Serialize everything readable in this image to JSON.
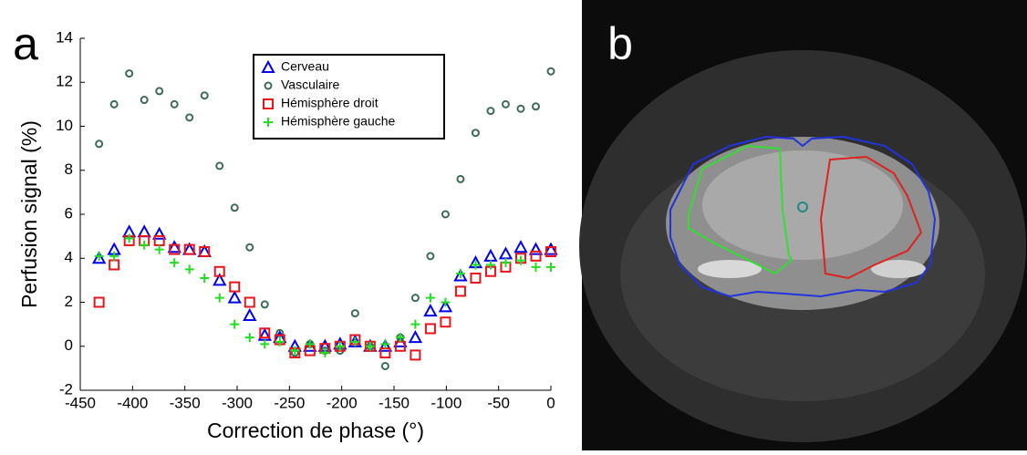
{
  "panel_labels": [
    "a",
    "b"
  ],
  "chart_data": {
    "type": "scatter",
    "xlabel": "Correction de phase (°)",
    "ylabel": "Perfusion signal (%)",
    "xlim": [
      -450,
      0
    ],
    "xticks": [
      -450,
      -400,
      -350,
      -300,
      -250,
      -200,
      -150,
      -100,
      -50,
      0
    ],
    "ylim": [
      -2,
      14
    ],
    "yticks": [
      -2,
      0,
      2,
      4,
      6,
      8,
      10,
      12,
      14
    ],
    "legend": "top",
    "x": [
      -432,
      -417.6,
      -403.2,
      -388.8,
      -374.4,
      -360,
      -345.6,
      -331.2,
      -316.8,
      -302.4,
      -288,
      -273.6,
      -259.2,
      -244.8,
      -230.4,
      -216,
      -201.6,
      -187.2,
      -172.8,
      -158.4,
      -144,
      -129.6,
      -115.2,
      -100.8,
      -86.4,
      -72,
      -57.6,
      -43.2,
      -28.8,
      -14.4,
      0
    ],
    "series": [
      {
        "name": "Cerveau",
        "color": "#0000ee",
        "marker": "triangle",
        "values": [
          4.0,
          4.4,
          5.2,
          5.2,
          5.1,
          4.5,
          4.4,
          4.3,
          3.0,
          2.2,
          1.4,
          0.5,
          0.4,
          0.0,
          0.0,
          0.0,
          0.1,
          0.2,
          0.0,
          0.0,
          0.2,
          0.4,
          1.6,
          1.8,
          3.2,
          3.8,
          4.1,
          4.2,
          4.5,
          4.4,
          4.4
        ]
      },
      {
        "name": "Vasculaire",
        "color": "#3d6b58",
        "marker": "circle",
        "values": [
          9.2,
          11.0,
          12.4,
          11.2,
          11.6,
          11.0,
          10.4,
          11.4,
          8.2,
          6.3,
          4.5,
          1.9,
          0.6,
          -0.3,
          0.1,
          -0.2,
          -0.2,
          1.5,
          0.0,
          -0.9,
          0.4,
          2.2,
          4.1,
          6.0,
          7.6,
          9.7,
          10.7,
          11.0,
          10.8,
          10.9,
          12.5
        ]
      },
      {
        "name": "Hémisphère droit",
        "color": "#e8141b",
        "marker": "square",
        "values": [
          2.0,
          3.7,
          4.8,
          4.8,
          4.8,
          4.4,
          4.4,
          4.3,
          3.4,
          2.7,
          2.0,
          0.6,
          0.3,
          -0.3,
          -0.2,
          -0.1,
          0.0,
          0.3,
          0.0,
          -0.3,
          0.0,
          -0.4,
          0.8,
          1.1,
          2.5,
          3.1,
          3.4,
          3.6,
          4.0,
          4.1,
          4.3
        ]
      },
      {
        "name": "Hémisphère gauche",
        "color": "#22dd22",
        "marker": "plus",
        "values": [
          4.1,
          4.1,
          4.9,
          4.6,
          4.4,
          3.8,
          3.5,
          3.1,
          2.2,
          1.0,
          0.4,
          0.1,
          0.2,
          -0.2,
          0.1,
          -0.3,
          0.0,
          0.2,
          0.0,
          0.1,
          0.4,
          1.0,
          2.2,
          2.0,
          3.3,
          3.7,
          3.7,
          3.8,
          3.9,
          3.6,
          3.6
        ]
      }
    ]
  }
}
